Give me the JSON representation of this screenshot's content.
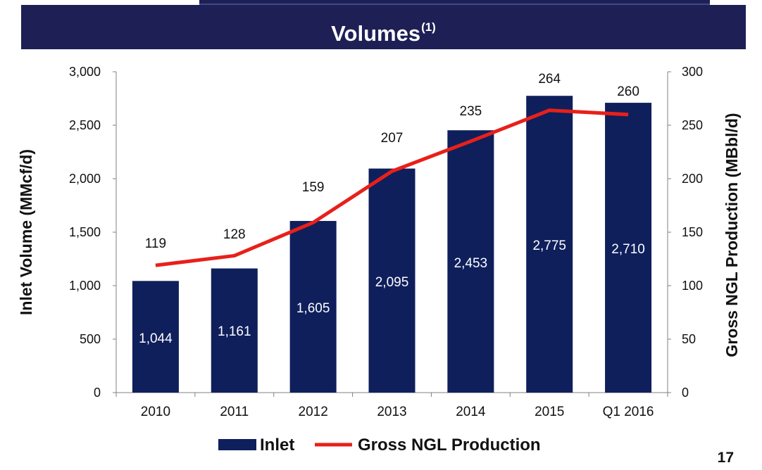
{
  "header": {
    "title": "Volumes",
    "title_superscript": "(1)"
  },
  "page_number": "17",
  "colors": {
    "header_bg": "#1d1f55",
    "bar": "#0f1f5c",
    "line": "#e8201a"
  },
  "chart_data": {
    "type": "bar",
    "title": "Volumes(1)",
    "categories": [
      "2010",
      "2011",
      "2012",
      "2013",
      "2014",
      "2015",
      "Q1 2016"
    ],
    "series": [
      {
        "name": "Inlet",
        "type": "bar",
        "axis": "left",
        "values": [
          1044,
          1161,
          1605,
          2095,
          2453,
          2775,
          2710
        ],
        "labels": [
          "1,044",
          "1,161",
          "1,605",
          "2,095",
          "2,453",
          "2,775",
          "2,710"
        ]
      },
      {
        "name": "Gross NGL Production",
        "type": "line",
        "axis": "right",
        "values": [
          119,
          128,
          159,
          207,
          235,
          264,
          260
        ],
        "labels": [
          "119",
          "128",
          "159",
          "207",
          "235",
          "264",
          "260"
        ]
      }
    ],
    "ylabel": "Inlet Volume (MMcf/d)",
    "y2label": "Gross NGL Production (MBbl/d)",
    "ylim": [
      0,
      3000
    ],
    "y2lim": [
      0,
      300
    ],
    "yticks": [
      "0",
      "500",
      "1,000",
      "1,500",
      "2,000",
      "2,500",
      "3,000"
    ],
    "y2ticks": [
      "0",
      "50",
      "100",
      "150",
      "200",
      "250",
      "300"
    ],
    "grid": false,
    "legend_position": "bottom"
  }
}
